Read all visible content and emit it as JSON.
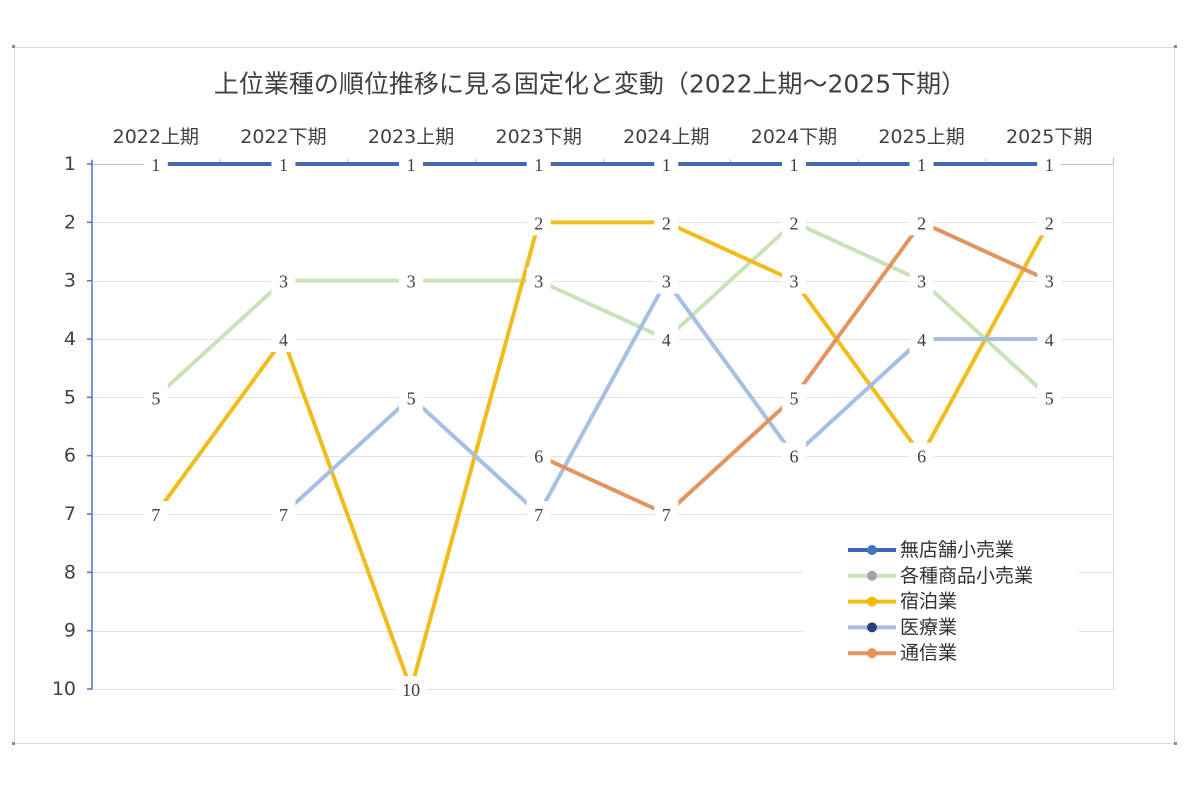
{
  "chart_data": {
    "type": "line",
    "title": "上位業種の順位推移に見る固定化と変動（2022上期～2025下期）",
    "categories": [
      "2022上期",
      "2022下期",
      "2023上期",
      "2023下期",
      "2024上期",
      "2024下期",
      "2025上期",
      "2025下期"
    ],
    "y_tick_labels": [
      "1",
      "2",
      "3",
      "4",
      "5",
      "6",
      "7",
      "8",
      "9",
      "10"
    ],
    "ylim": [
      1,
      10
    ],
    "y_axis_reversed": true,
    "grid": true,
    "data_labels": true,
    "legend_position": "bottom-right",
    "series": [
      {
        "name": "無店舗小売業",
        "values": [
          1,
          1,
          1,
          1,
          1,
          1,
          1,
          1
        ],
        "color": "#4169B2",
        "marker_color": "#4472C4"
      },
      {
        "name": "各種商品小売業",
        "values": [
          5,
          3,
          3,
          3,
          4,
          2,
          3,
          5
        ],
        "color": "#C9E2B9",
        "marker_color": "#A5A5A5"
      },
      {
        "name": "宿泊業",
        "values": [
          7,
          4,
          10,
          2,
          2,
          3,
          6,
          2
        ],
        "color": "#F0BD1C",
        "marker_color": "#F4BC00"
      },
      {
        "name": "医療業",
        "values": [
          null,
          7,
          5,
          7,
          3,
          6,
          4,
          4
        ],
        "color": "#A7BFE2",
        "marker_color": "#25407A"
      },
      {
        "name": "通信業",
        "values": [
          null,
          null,
          null,
          6,
          7,
          5,
          2,
          3
        ],
        "color": "#E4955F",
        "marker_color": "#E8925A"
      }
    ]
  }
}
